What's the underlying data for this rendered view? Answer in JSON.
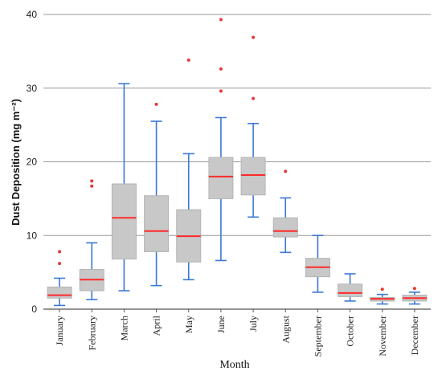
{
  "chart_data": {
    "type": "boxplot",
    "xlabel": "Month",
    "ylabel": "Dust Deposition (mg m⁻²)",
    "ylim": [
      0,
      40
    ],
    "yticks": [
      0,
      10,
      20,
      30,
      40
    ],
    "grid": "horizontal",
    "colors": {
      "box_fill": "#c8c8c8",
      "box_stroke": "#b4b4b4",
      "whisker": "#3a78d4",
      "median": "#ff2a2a",
      "outlier": "#e8383a",
      "grid": "#9a9a9a"
    },
    "categories": [
      "January",
      "February",
      "March",
      "April",
      "May",
      "June",
      "July",
      "August",
      "September",
      "October",
      "November",
      "December"
    ],
    "boxes": [
      {
        "min": 0.5,
        "q1": 1.5,
        "median": 1.9,
        "q3": 3.0,
        "max": 4.2,
        "outliers": [
          6.2,
          7.8
        ]
      },
      {
        "min": 1.3,
        "q1": 2.5,
        "median": 4.0,
        "q3": 5.4,
        "max": 9.0,
        "outliers": [
          16.7,
          17.4
        ]
      },
      {
        "min": 2.5,
        "q1": 6.8,
        "median": 12.4,
        "q3": 17.0,
        "max": 30.6,
        "outliers": []
      },
      {
        "min": 3.2,
        "q1": 7.8,
        "median": 10.6,
        "q3": 15.4,
        "max": 25.5,
        "outliers": [
          27.8
        ]
      },
      {
        "min": 4.0,
        "q1": 6.4,
        "median": 9.9,
        "q3": 13.5,
        "max": 21.1,
        "outliers": [
          33.8
        ]
      },
      {
        "min": 6.6,
        "q1": 15.0,
        "median": 18.0,
        "q3": 20.6,
        "max": 26.0,
        "outliers": [
          29.6,
          32.6,
          39.3
        ]
      },
      {
        "min": 12.5,
        "q1": 15.5,
        "median": 18.2,
        "q3": 20.6,
        "max": 25.2,
        "outliers": [
          28.6,
          36.9
        ]
      },
      {
        "min": 7.7,
        "q1": 9.8,
        "median": 10.6,
        "q3": 12.4,
        "max": 15.1,
        "outliers": [
          18.7
        ]
      },
      {
        "min": 2.3,
        "q1": 4.4,
        "median": 5.7,
        "q3": 6.9,
        "max": 10.0,
        "outliers": []
      },
      {
        "min": 1.1,
        "q1": 1.7,
        "median": 2.2,
        "q3": 3.4,
        "max": 4.8,
        "outliers": []
      },
      {
        "min": 0.7,
        "q1": 1.1,
        "median": 1.4,
        "q3": 1.6,
        "max": 2.0,
        "outliers": [
          2.7
        ]
      },
      {
        "min": 0.7,
        "q1": 1.1,
        "median": 1.5,
        "q3": 1.9,
        "max": 2.3,
        "outliers": [
          2.8
        ]
      }
    ]
  }
}
